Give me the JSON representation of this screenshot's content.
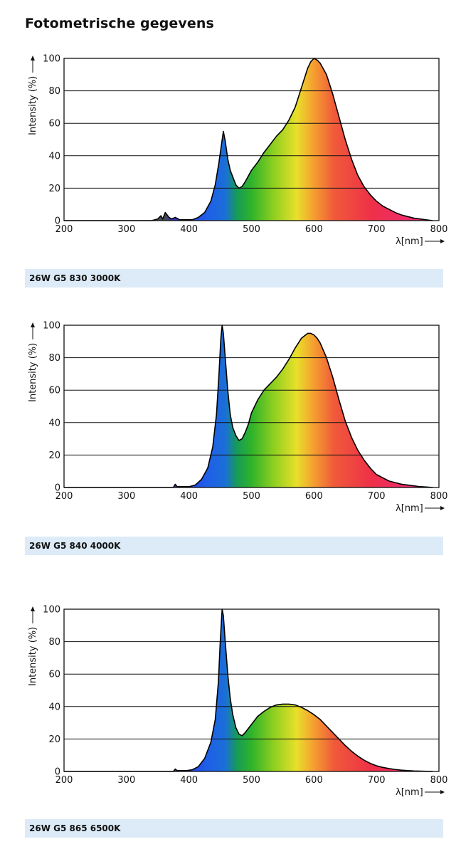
{
  "page": {
    "title": "Fotometrische gegevens"
  },
  "colors": {
    "uv_dark": "#6f7d7c",
    "grid": "#111111",
    "caption_bg": "#dcebf7"
  },
  "chart_data": [
    {
      "type": "area",
      "caption": "26W G5 830 3000K",
      "xlabel": "λ[nm]",
      "ylabel": "Intensity (%)",
      "xlim": [
        200,
        800
      ],
      "ylim": [
        0,
        100
      ],
      "xticks": [
        200,
        300,
        400,
        500,
        600,
        700,
        800
      ],
      "yticks": [
        0,
        20,
        40,
        60,
        80,
        100
      ],
      "grid": true,
      "series": [
        {
          "x": [
            200,
            340,
            350,
            355,
            358,
            362,
            368,
            372,
            378,
            385,
            395,
            405,
            415,
            425,
            435,
            442,
            448,
            452,
            455,
            458,
            462,
            466,
            470,
            475,
            480,
            485,
            490,
            500,
            510,
            520,
            530,
            540,
            550,
            560,
            570,
            580,
            590,
            595,
            600,
            605,
            610,
            620,
            630,
            640,
            650,
            660,
            670,
            680,
            690,
            700,
            710,
            720,
            730,
            740,
            750,
            760,
            770,
            780,
            790
          ],
          "y": [
            0,
            0,
            1,
            3,
            1,
            5,
            2,
            1,
            2,
            0.5,
            0.5,
            0.5,
            2,
            5,
            12,
            22,
            36,
            47,
            55,
            49,
            38,
            31,
            27,
            22,
            20,
            21,
            24,
            31,
            36,
            42,
            47,
            52,
            56,
            62,
            70,
            82,
            94,
            98,
            100,
            99,
            97,
            90,
            78,
            64,
            50,
            38,
            28,
            21,
            16,
            12,
            9,
            7,
            5,
            3.5,
            2.5,
            1.5,
            1,
            0.5,
            0
          ]
        }
      ]
    },
    {
      "type": "area",
      "caption": "26W G5 840 4000K",
      "xlabel": "λ[nm]",
      "ylabel": "Intensity (%)",
      "xlim": [
        200,
        800
      ],
      "ylim": [
        0,
        100
      ],
      "xticks": [
        200,
        300,
        400,
        500,
        600,
        700,
        800
      ],
      "yticks": [
        0,
        20,
        40,
        60,
        80,
        100
      ],
      "grid": true,
      "series": [
        {
          "x": [
            200,
            375,
            378,
            381,
            385,
            390,
            400,
            410,
            420,
            430,
            438,
            444,
            448,
            451,
            453,
            455,
            458,
            462,
            466,
            470,
            475,
            480,
            485,
            490,
            495,
            500,
            510,
            520,
            530,
            540,
            550,
            560,
            570,
            580,
            590,
            595,
            600,
            605,
            610,
            620,
            630,
            640,
            650,
            660,
            670,
            680,
            690,
            700,
            710,
            720,
            730,
            740,
            750,
            760,
            770,
            780,
            790
          ],
          "y": [
            0,
            0,
            2,
            0.5,
            0.5,
            0.5,
            0.5,
            1.5,
            5,
            12,
            25,
            45,
            70,
            92,
            100,
            95,
            80,
            60,
            45,
            37,
            32,
            29,
            30,
            34,
            39,
            46,
            54,
            60,
            64,
            68,
            73,
            79,
            86,
            92,
            95,
            95,
            94,
            92,
            89,
            80,
            68,
            54,
            41,
            31,
            23,
            17,
            12,
            8,
            6,
            4,
            3,
            2,
            1.5,
            1,
            0.5,
            0.3,
            0
          ]
        }
      ]
    },
    {
      "type": "area",
      "caption": "26W G5 865 6500K",
      "xlabel": "λ[nm]",
      "ylabel": "Intensity (%)",
      "xlim": [
        200,
        800
      ],
      "ylim": [
        0,
        100
      ],
      "xticks": [
        200,
        300,
        400,
        500,
        600,
        700,
        800
      ],
      "yticks": [
        0,
        20,
        40,
        60,
        80,
        100
      ],
      "grid": true,
      "series": [
        {
          "x": [
            200,
            375,
            378,
            381,
            385,
            395,
            405,
            415,
            425,
            435,
            442,
            447,
            450,
            453,
            455,
            458,
            462,
            466,
            470,
            475,
            480,
            485,
            490,
            500,
            510,
            520,
            530,
            540,
            550,
            560,
            570,
            580,
            590,
            600,
            610,
            620,
            630,
            640,
            650,
            660,
            670,
            680,
            690,
            700,
            710,
            720,
            730,
            740,
            750,
            760,
            770,
            780,
            790
          ],
          "y": [
            0,
            0,
            1.5,
            0.5,
            0.5,
            0.5,
            1,
            3,
            8,
            18,
            32,
            55,
            80,
            100,
            96,
            80,
            60,
            45,
            35,
            27,
            23,
            22,
            24,
            29,
            34,
            37,
            39.5,
            41,
            41.5,
            41.5,
            41,
            39.5,
            37.5,
            35,
            32,
            28,
            24,
            20,
            16,
            12.5,
            9.5,
            7,
            5,
            3.5,
            2.5,
            1.8,
            1.2,
            0.8,
            0.5,
            0.3,
            0.2,
            0.1,
            0
          ]
        }
      ]
    }
  ]
}
